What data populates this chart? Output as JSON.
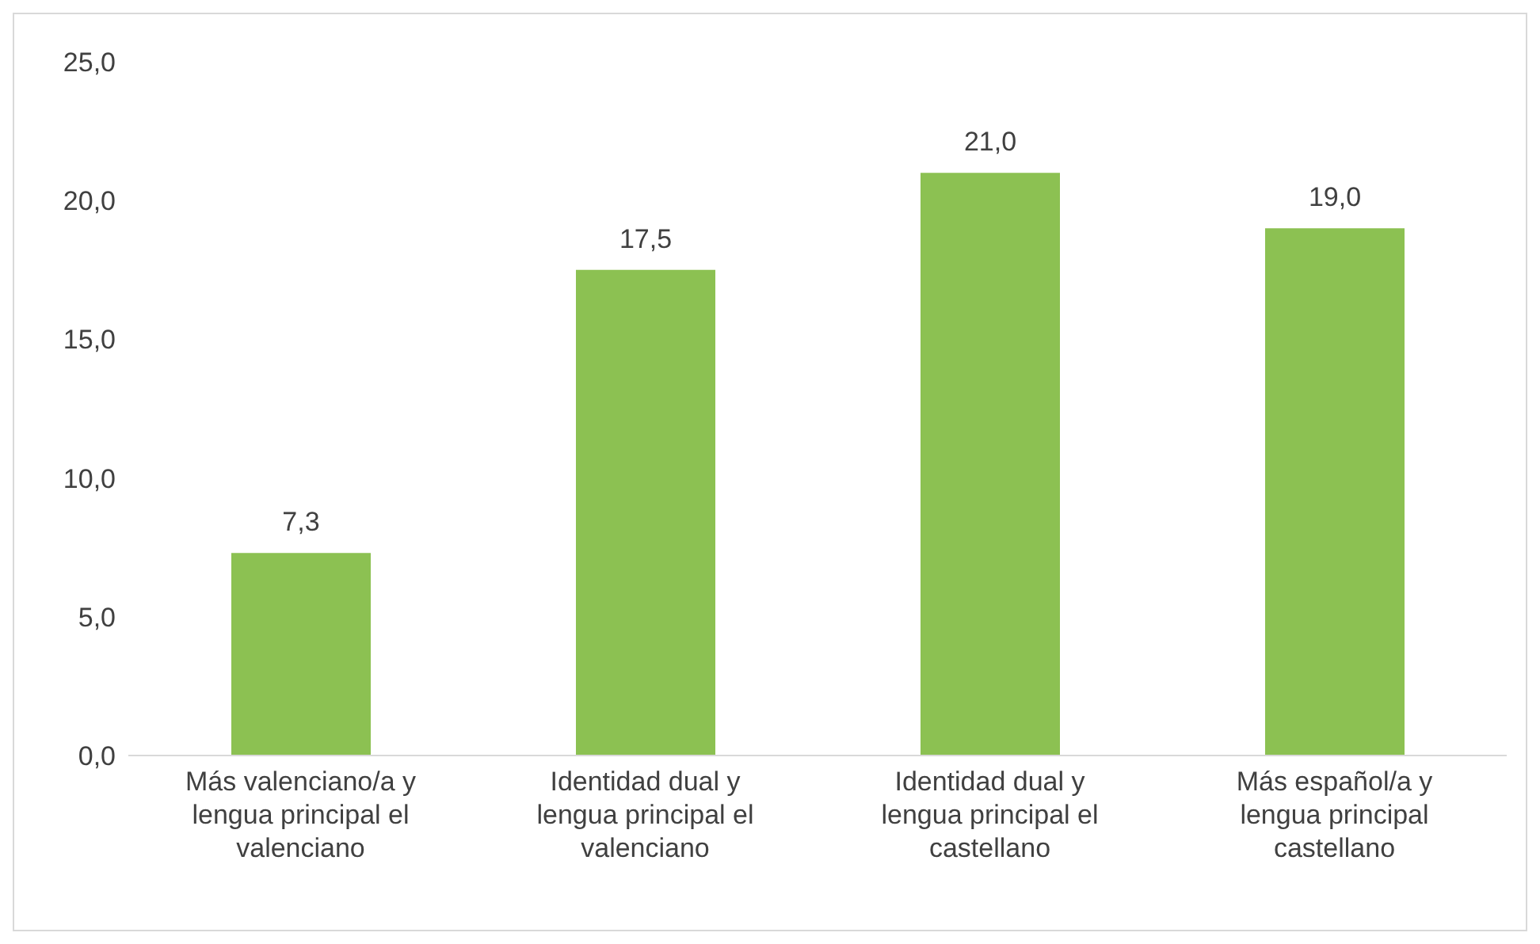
{
  "chart_data": {
    "type": "bar",
    "categories": [
      "Más valenciano/a y lengua principal el valenciano",
      "Identidad dual y lengua principal el valenciano",
      "Identidad dual y lengua principal el castellano",
      "Más español/a y lengua principal castellano"
    ],
    "values": [
      7.3,
      17.5,
      21.0,
      19.0
    ],
    "value_labels": [
      "7,3",
      "17,5",
      "21,0",
      "19,0"
    ],
    "color": "#8cc152",
    "ylim": [
      0,
      25
    ],
    "yticks": [
      {
        "value": 0,
        "label": "0,0"
      },
      {
        "value": 5,
        "label": "5,0"
      },
      {
        "value": 10,
        "label": "10,0"
      },
      {
        "value": 15,
        "label": "15,0"
      },
      {
        "value": 20,
        "label": "20,0"
      },
      {
        "value": 25,
        "label": "25,0"
      }
    ],
    "grid": false,
    "legend": false
  }
}
